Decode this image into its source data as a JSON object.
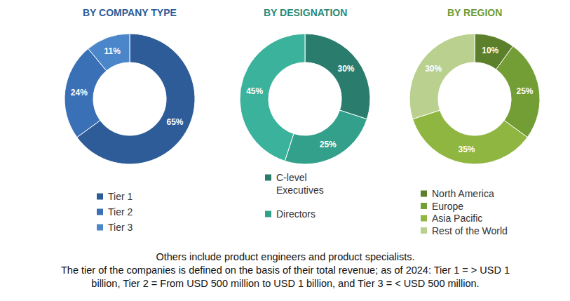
{
  "chart_data": [
    {
      "type": "pie",
      "title": "BY COMPANY TYPE",
      "categories": [
        "Tier 1",
        "Tier 2",
        "Tier 3"
      ],
      "values": [
        65,
        24,
        11
      ],
      "value_labels": [
        "65%",
        "24%",
        "11%"
      ],
      "colors": [
        "#2d5c98",
        "#3a70b5",
        "#4a86c9"
      ],
      "data_labels": true
    },
    {
      "type": "pie",
      "title": "BY DESIGNATION",
      "categories": [
        "C-level Executives",
        "Directors",
        null
      ],
      "values": [
        30,
        25,
        45
      ],
      "value_labels": [
        "30%",
        "25%",
        "45%"
      ],
      "colors": [
        "#2a7d6c",
        "#33a08b",
        "#3bb29c"
      ],
      "data_labels": true
    },
    {
      "type": "pie",
      "title": "BY REGION",
      "categories": [
        "North America",
        "Europe",
        "Asia Pacific",
        "Rest of the World"
      ],
      "values": [
        10,
        25,
        35,
        30
      ],
      "value_labels": [
        "10%",
        "25%",
        "35%",
        "30%"
      ],
      "colors": [
        "#5c7f2b",
        "#739d35",
        "#8fb641",
        "#b9d08e"
      ],
      "data_labels": true
    }
  ],
  "footnotes": [
    "Others include product engineers and product specialists.",
    "The tier of the companies is defined on the basis of their total revenue; as of 2024: Tier 1 = > USD 1",
    "billion, Tier 2 = From USD 500 million to USD 1 billion, and Tier 3 = < USD 500 million."
  ]
}
